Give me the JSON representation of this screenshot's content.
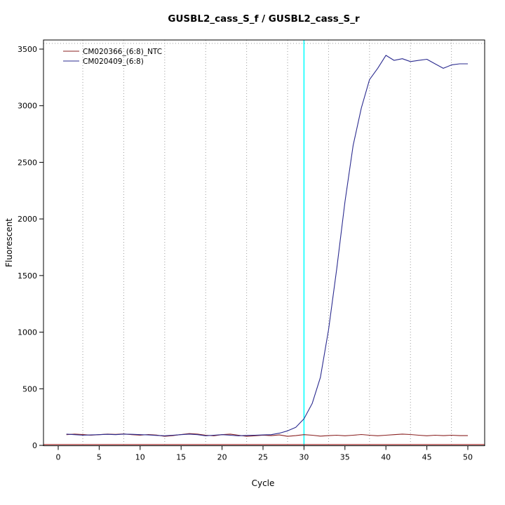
{
  "chart_data": {
    "type": "line",
    "title": "GUSBL2_cass_S_f / GUSBL2_cass_S_r",
    "xlabel": "Cycle",
    "ylabel": "Fluorescent",
    "xlim": [
      0,
      50
    ],
    "ylim": [
      0,
      3500
    ],
    "x_ticks": [
      0,
      5,
      10,
      15,
      20,
      25,
      30,
      35,
      40,
      45,
      50
    ],
    "y_ticks": [
      0,
      500,
      1000,
      1500,
      2000,
      2500,
      3000,
      3500
    ],
    "x": [
      1,
      2,
      3,
      4,
      5,
      6,
      7,
      8,
      9,
      10,
      11,
      12,
      13,
      14,
      15,
      16,
      17,
      18,
      19,
      20,
      21,
      22,
      23,
      24,
      25,
      26,
      27,
      28,
      29,
      30,
      31,
      32,
      33,
      34,
      35,
      36,
      37,
      38,
      39,
      40,
      41,
      42,
      43,
      44,
      45,
      46,
      47,
      48,
      49,
      50
    ],
    "series": [
      {
        "name": "CM020366_(6:8)_NTC",
        "color": "#8b2323",
        "values": [
          95,
          100,
          96,
          90,
          95,
          100,
          97,
          101,
          95,
          90,
          96,
          91,
          80,
          86,
          96,
          104,
          100,
          90,
          85,
          95,
          100,
          90,
          80,
          85,
          90,
          86,
          92,
          80,
          86,
          95,
          90,
          82,
          86,
          90,
          85,
          90,
          96,
          90,
          85,
          90,
          95,
          100,
          96,
          90,
          85,
          90,
          86,
          90,
          86,
          86
        ]
      },
      {
        "name": "CM020409_(6:8)",
        "color": "#2b2b8f",
        "values": [
          100,
          95,
          90,
          92,
          95,
          98,
          95,
          100,
          98,
          95,
          92,
          88,
          85,
          90,
          95,
          100,
          95,
          85,
          90,
          95,
          90,
          85,
          88,
          90,
          92,
          95,
          108,
          128,
          160,
          235,
          370,
          600,
          1020,
          1560,
          2150,
          2650,
          2980,
          3230,
          3330,
          3445,
          3400,
          3415,
          3390,
          3400,
          3410,
          3370,
          3330,
          3360,
          3370,
          3370
        ]
      }
    ],
    "threshold_line": {
      "y": 8,
      "color": "#8b0000"
    },
    "marker_line": {
      "x": 30,
      "color": "#00ffff"
    },
    "grid": {
      "vertical_x": [
        3,
        8,
        13,
        18,
        23,
        28,
        33,
        38,
        43,
        48
      ],
      "horizontal_y": [
        3550
      ],
      "color": "#9a9a9a"
    },
    "legend_position": "top-left"
  }
}
